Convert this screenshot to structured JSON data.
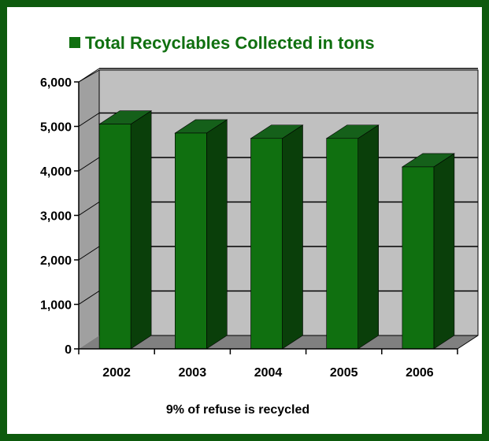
{
  "chart_data": {
    "type": "bar",
    "title": "Total Recyclables Collected in tons",
    "legend": "Total Recyclables Collected in tons",
    "categories": [
      "2002",
      "2003",
      "2004",
      "2005",
      "2006"
    ],
    "series": [
      {
        "name": "Total Recyclables Collected in tons",
        "values": [
          5050,
          4850,
          4730,
          4730,
          4090
        ]
      }
    ],
    "ylim": [
      0,
      6000
    ],
    "yticks": [
      "0",
      "1,000",
      "2,000",
      "3,000",
      "4,000",
      "5,000",
      "6,000"
    ],
    "grid": true,
    "legend_position": "top",
    "three_d": true,
    "colors": {
      "bar_front": "#107010",
      "bar_side": "#0a3f0a",
      "bar_top": "#15601a",
      "wall": "#c0c0c0",
      "floor": "#808080",
      "border": "#0d5a0d"
    }
  },
  "footnote": "9% of refuse is recycled"
}
